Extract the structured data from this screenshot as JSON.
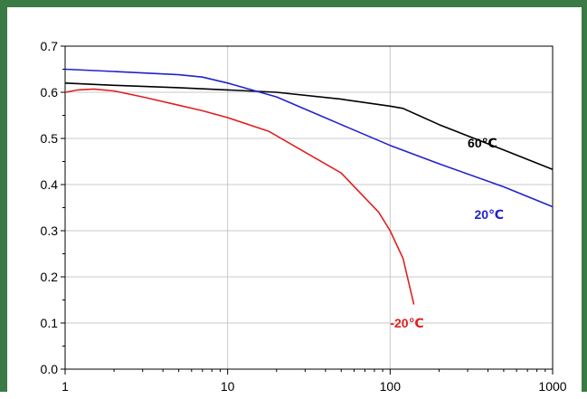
{
  "chart_data": {
    "type": "line",
    "title": "",
    "xlabel": "",
    "ylabel": "",
    "x_scale": "log",
    "xlim": [
      1,
      1000
    ],
    "ylim": [
      0.0,
      0.7
    ],
    "grid": true,
    "x_ticks": [
      "1",
      "10",
      "100",
      "1000"
    ],
    "y_ticks": [
      "0.0",
      "0.1",
      "0.2",
      "0.3",
      "0.4",
      "0.5",
      "0.6",
      "0.7"
    ],
    "series": [
      {
        "name": "60℃",
        "color": "#000000",
        "x": [
          1,
          2,
          5,
          10,
          20,
          50,
          100,
          120,
          200,
          500,
          1000
        ],
        "y": [
          0.62,
          0.615,
          0.61,
          0.605,
          0.6,
          0.585,
          0.57,
          0.565,
          0.53,
          0.475,
          0.433
        ]
      },
      {
        "name": "20℃",
        "color": "#2222cc",
        "x": [
          1,
          2,
          5,
          7,
          10,
          20,
          50,
          100,
          200,
          500,
          1000
        ],
        "y": [
          0.65,
          0.645,
          0.638,
          0.633,
          0.62,
          0.59,
          0.53,
          0.485,
          0.445,
          0.395,
          0.352
        ]
      },
      {
        "name": "-20℃",
        "color": "#e02020",
        "x": [
          1,
          1.2,
          1.5,
          2,
          3,
          5,
          7,
          10,
          18,
          30,
          50,
          85,
          100,
          120,
          140
        ],
        "y": [
          0.6,
          0.605,
          0.607,
          0.603,
          0.59,
          0.572,
          0.56,
          0.545,
          0.515,
          0.47,
          0.425,
          0.34,
          0.3,
          0.24,
          0.14
        ]
      }
    ]
  }
}
